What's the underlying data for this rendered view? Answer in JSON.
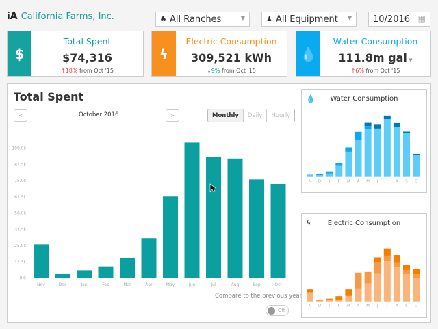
{
  "header": {
    "logo": "iA",
    "company": "California Farms, Inc.",
    "ranch_select": "All Ranches",
    "equipment_select": "All Equipment",
    "date": "10/2016"
  },
  "cards": [
    {
      "title": "Total Spent",
      "value": "$74,316",
      "change": "18%",
      "direction": "up",
      "suffix": "from Oct '15",
      "color": "#16a3a0",
      "icon": "dollar-icon"
    },
    {
      "title": "Electric Consumption",
      "value": "309,521 kWh",
      "change": "9%",
      "direction": "down",
      "suffix": "from Oct '15",
      "color": "#f7901e",
      "icon": "lightning-icon"
    },
    {
      "title": "Water Consumption",
      "value": "111.8m gal",
      "change": "6%",
      "direction": "up",
      "suffix": "from Oct '15",
      "color": "#0aaaf0",
      "icon": "water-drop-icon"
    }
  ],
  "main": {
    "title": "Total Spent",
    "period": "October 2016",
    "prev": "<",
    "next": ">",
    "views": [
      "Monthly",
      "Daily",
      "Hourly"
    ],
    "active_view": "Monthly",
    "compare_label": "Compare to the previous year",
    "toggle": "Off"
  },
  "chart_data": [
    {
      "type": "bar",
      "title": "",
      "categories": [
        "Nov",
        "Dec",
        "Jan",
        "Feb",
        "Mar",
        "Apr",
        "May",
        "Jun",
        "Jul",
        "Aug",
        "Sep",
        "Oct"
      ],
      "values": [
        25600,
        3200,
        5600,
        8600,
        15300,
        30400,
        62500,
        104000,
        93000,
        91700,
        75600,
        72100
      ],
      "yticks": [
        "0.0",
        "12.5k",
        "25.0k",
        "37.5k",
        "50.0k",
        "62.5k",
        "75.0k",
        "87.5k",
        "100.0k"
      ],
      "ylim": [
        0,
        100000
      ],
      "color": "#0ba09f"
    },
    {
      "type": "bar",
      "stacked": true,
      "title": "Water Consumption",
      "categories": [
        "N",
        "D",
        "J",
        "F",
        "M",
        "A",
        "M",
        "J",
        "J",
        "A",
        "S",
        "O"
      ],
      "series": [
        {
          "values": [
            11,
            8,
            17,
            56,
            120,
            177,
            228,
            231,
            276,
            239,
            210,
            104
          ],
          "color": "#5ccdf8"
        },
        {
          "values": [
            0,
            7,
            7,
            9,
            21,
            38,
            15,
            0,
            0,
            0,
            0,
            0
          ],
          "color": "#0aaaf0"
        },
        {
          "values": [
            0,
            0,
            2,
            0,
            0,
            0,
            15,
            18,
            17,
            18,
            6,
            6
          ],
          "color": "#0079b3"
        }
      ],
      "ylim": [
        0,
        300
      ]
    },
    {
      "type": "bar",
      "stacked": true,
      "title": "Electric Consumption",
      "categories": [
        "N",
        "D",
        "J",
        "F",
        "M",
        "A",
        "M",
        "J",
        "J",
        "A",
        "S",
        "O"
      ],
      "series": [
        {
          "values": [
            36,
            4,
            5,
            8,
            25,
            60,
            83,
            131,
            189,
            158,
            127,
            108
          ],
          "color": "#fbb479"
        },
        {
          "values": [
            7,
            0,
            4,
            0,
            0,
            74,
            57,
            52,
            24,
            24,
            19,
            18
          ],
          "color": "#f79a45"
        },
        {
          "values": [
            13,
            4,
            4,
            16,
            31,
            0,
            0,
            22,
            33,
            34,
            23,
            25
          ],
          "color": "#f57d00"
        }
      ],
      "ylim": [
        0,
        300
      ]
    }
  ]
}
